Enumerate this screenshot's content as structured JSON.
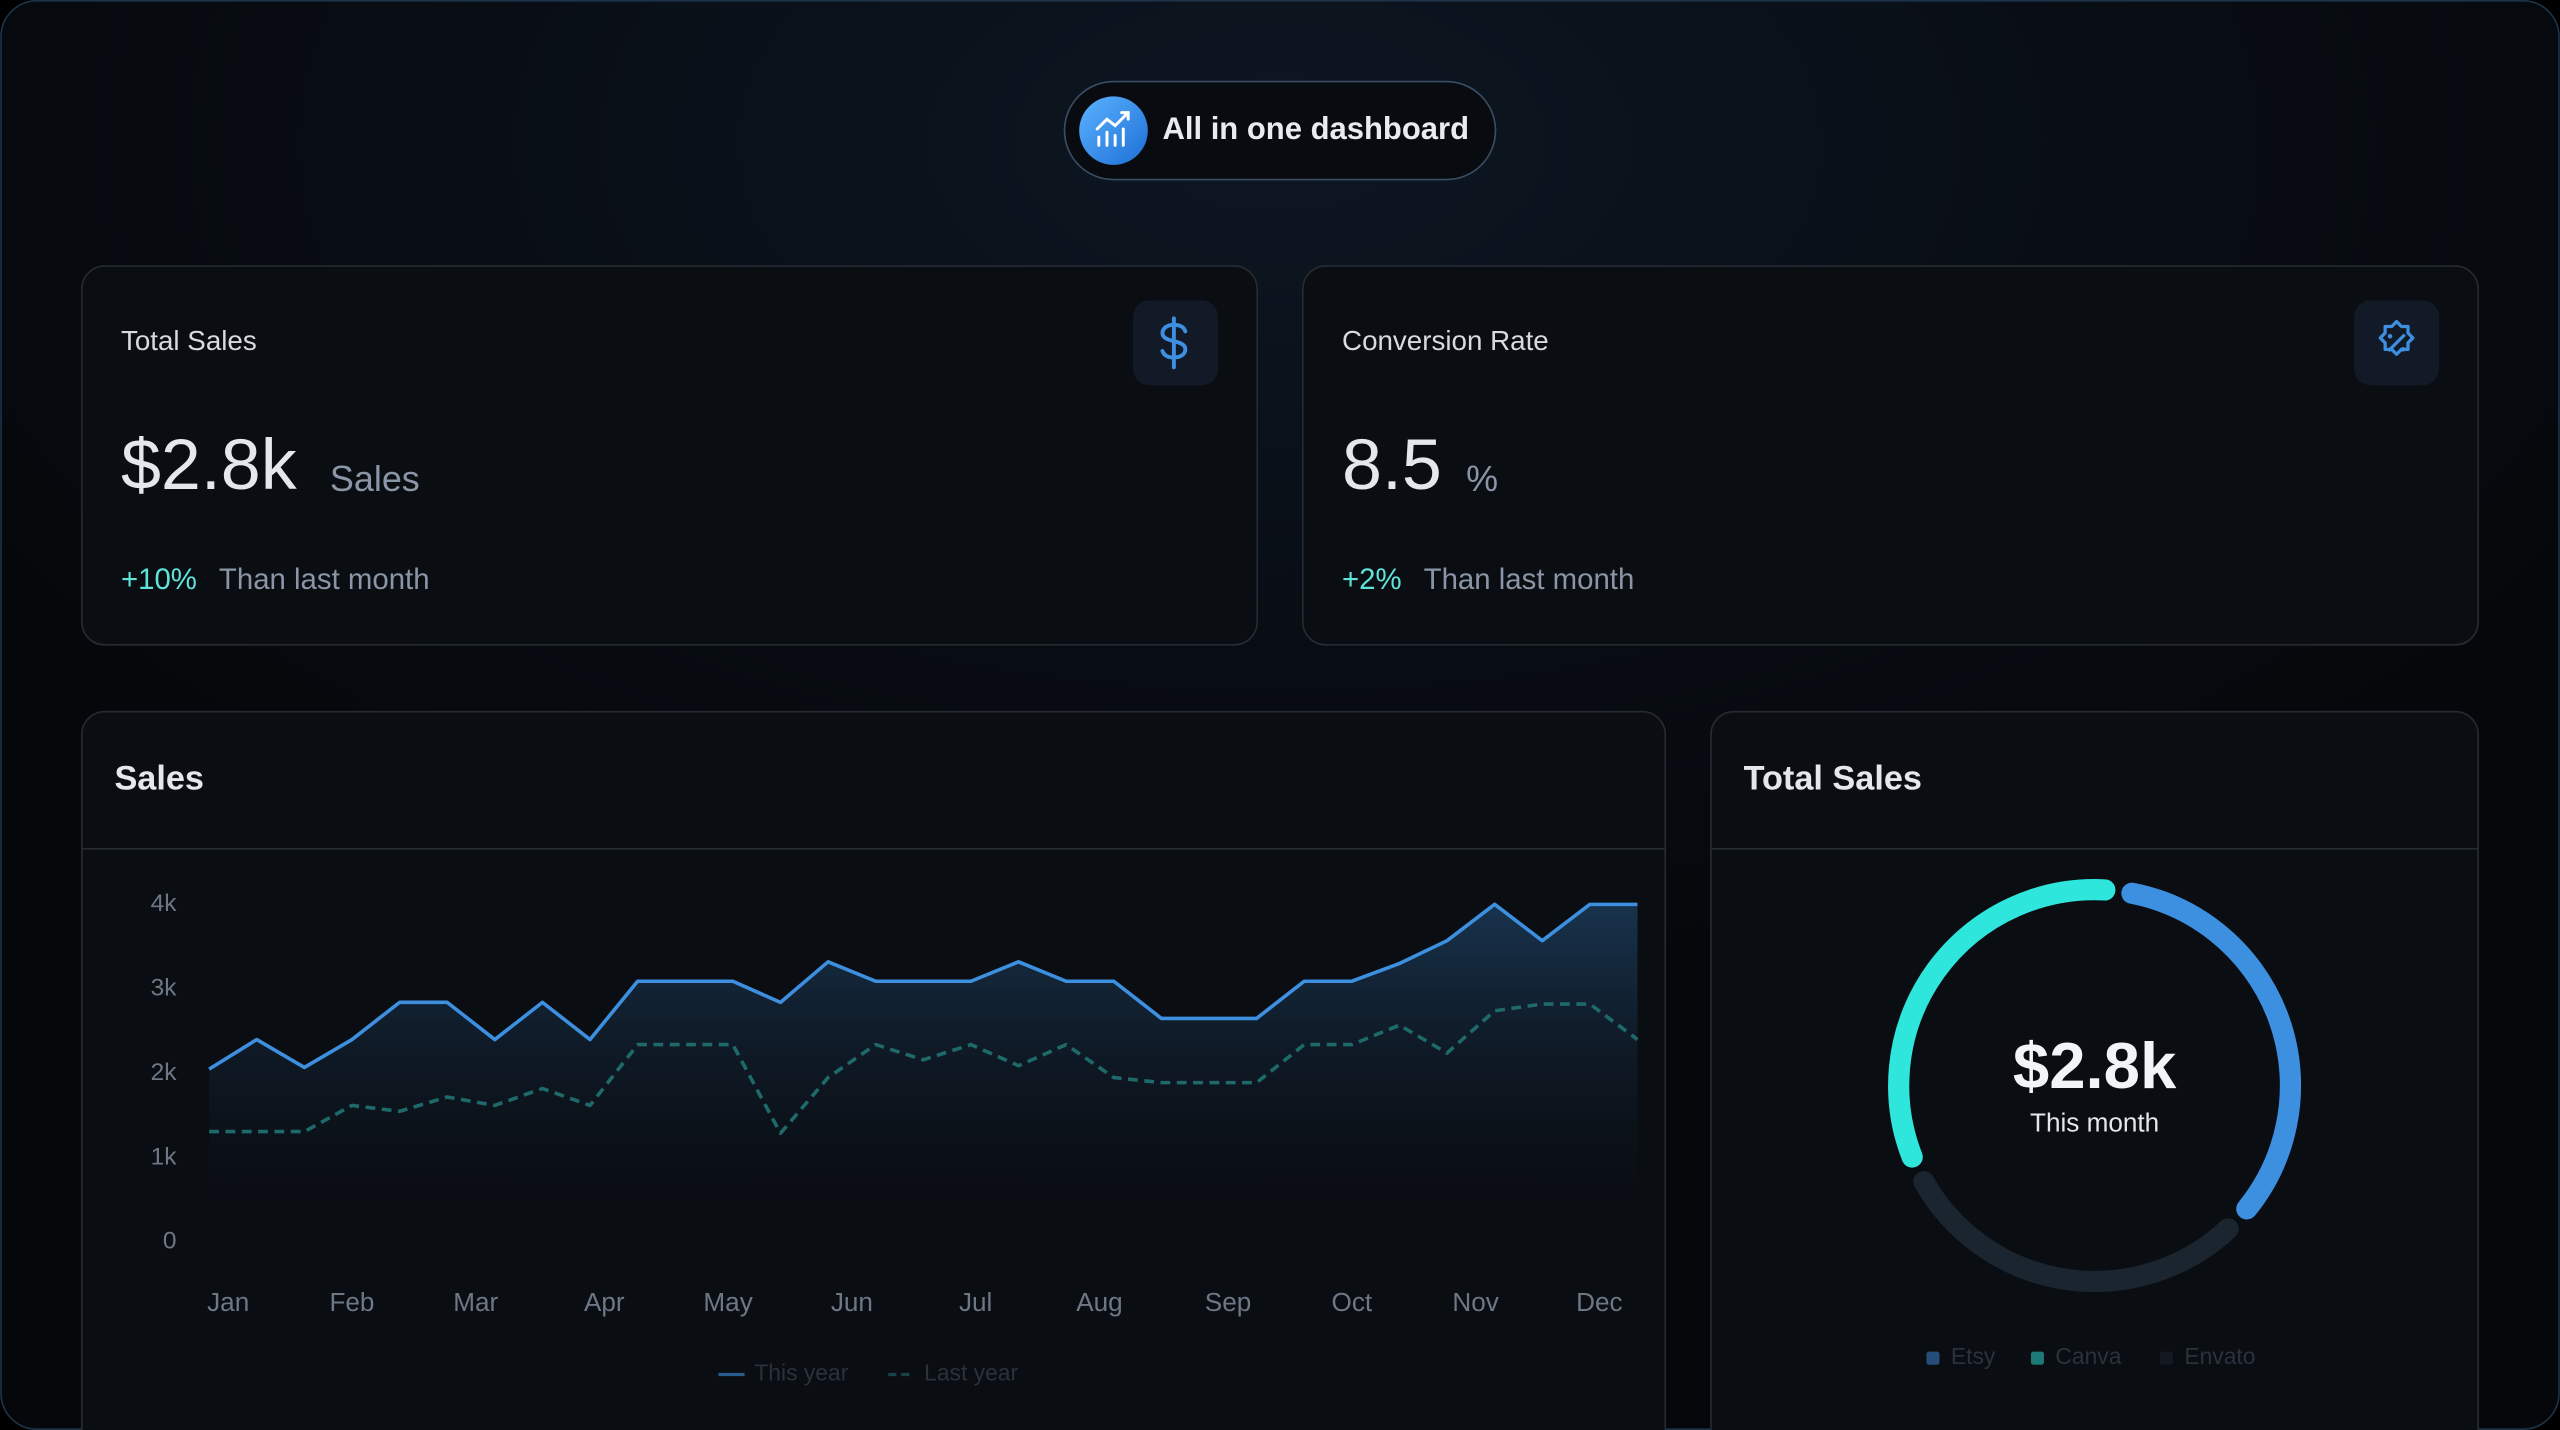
{
  "header": {
    "badge": "All in one dashboard"
  },
  "cards": [
    {
      "title": "Total Sales",
      "value": "$2.8k",
      "unit": "Sales",
      "change": "+10%",
      "note": "Than last month"
    },
    {
      "title": "Conversion Rate",
      "value": "8.5",
      "unit": "%",
      "change": "+2%",
      "note": "Than last month"
    }
  ],
  "chart_data": [
    {
      "type": "line",
      "title": "Sales",
      "x": [
        0,
        1,
        2,
        3,
        4,
        5,
        6,
        7,
        8,
        9,
        10,
        11,
        12,
        13,
        14,
        15,
        16,
        17,
        18,
        19,
        20,
        21,
        22,
        23,
        24,
        25,
        26,
        27,
        28,
        29,
        30
      ],
      "xlim": [
        0,
        30
      ],
      "xticks": [
        {
          "value": 0.4,
          "label": "Jan"
        },
        {
          "value": 3,
          "label": "Feb"
        },
        {
          "value": 5.6,
          "label": "Mar"
        },
        {
          "value": 8.3,
          "label": "Apr"
        },
        {
          "value": 10.9,
          "label": "May"
        },
        {
          "value": 13.5,
          "label": "Jun"
        },
        {
          "value": 16.1,
          "label": "Jul"
        },
        {
          "value": 18.7,
          "label": "Aug"
        },
        {
          "value": 21.4,
          "label": "Sep"
        },
        {
          "value": 24,
          "label": "Oct"
        },
        {
          "value": 26.6,
          "label": "Nov"
        },
        {
          "value": 29.2,
          "label": "Dec"
        }
      ],
      "ylim": [
        0,
        4000
      ],
      "yticks": [
        0,
        {
          "value": 1000,
          "label": "1k"
        },
        {
          "value": 2000,
          "label": "2k"
        },
        {
          "value": 3000,
          "label": "3k"
        },
        {
          "value": 4000,
          "label": "4k"
        }
      ],
      "series": [
        {
          "name": "This year",
          "color": "#3d8fe0",
          "style": "solid",
          "area": true,
          "values": [
            2050,
            2400,
            2070,
            2400,
            2840,
            2840,
            2400,
            2840,
            2400,
            3090,
            3090,
            3090,
            2840,
            3320,
            3090,
            3090,
            3090,
            3320,
            3090,
            3090,
            2650,
            2650,
            2650,
            3090,
            3090,
            3300,
            3570,
            4000,
            3570,
            4000,
            4000
          ]
        },
        {
          "name": "Last year",
          "color": "#1e6a6a",
          "style": "dashed",
          "area": false,
          "values": [
            1310,
            1310,
            1310,
            1620,
            1550,
            1720,
            1620,
            1820,
            1620,
            2340,
            2340,
            2340,
            1290,
            1950,
            2340,
            2160,
            2340,
            2090,
            2340,
            1950,
            1890,
            1890,
            1890,
            2340,
            2340,
            2570,
            2240,
            2740,
            2820,
            2820,
            2400
          ]
        }
      ],
      "legend": "bottom"
    },
    {
      "type": "donut",
      "title": "Total Sales",
      "center_value": "$2.8k",
      "center_label": "This month",
      "categories": [
        "Etsy",
        "Canva",
        "Envato"
      ],
      "values": [
        35,
        34,
        31
      ],
      "colors": [
        "#3d8fe0",
        "#2ee6dc",
        "#1a2530"
      ],
      "legend": "bottom"
    }
  ]
}
